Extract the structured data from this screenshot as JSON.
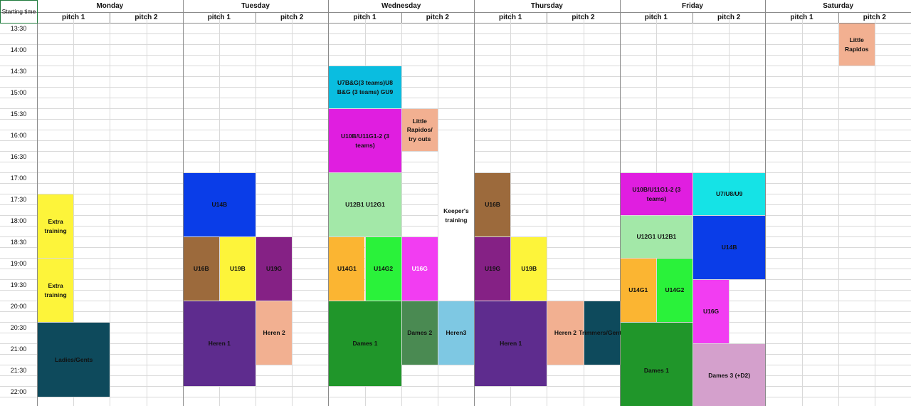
{
  "header": {
    "corner": "Starting time"
  },
  "days": [
    {
      "name": "Monday",
      "pitches": [
        "pitch 1",
        "pitch 2"
      ]
    },
    {
      "name": "Tuesday",
      "pitches": [
        "pitch 1",
        "pitch 2"
      ]
    },
    {
      "name": "Wednesday",
      "pitches": [
        "pitch 1",
        "pitch 2"
      ]
    },
    {
      "name": "Thursday",
      "pitches": [
        "pitch 1",
        "pitch 2"
      ]
    },
    {
      "name": "Friday",
      "pitches": [
        "pitch 1",
        "pitch 2"
      ]
    },
    {
      "name": "Saturday",
      "pitches": [
        "pitch 1",
        "pitch 2"
      ]
    }
  ],
  "times": [
    "13:30",
    "14:00",
    "14:30",
    "15:00",
    "15:30",
    "16:00",
    "16:30",
    "17:00",
    "17:30",
    "18:00",
    "18:30",
    "19:00",
    "19:30",
    "20:00",
    "20:30",
    "21:00",
    "21:30",
    "22:00"
  ],
  "events": [
    {
      "label": "Extra training",
      "color": "#fdf43a"
    },
    {
      "label": "Extra training",
      "color": "#fdf43a"
    },
    {
      "label": "Ladies/Gents",
      "color": "#0e4a5c"
    },
    {
      "label": "U14B",
      "color": "#0a3de8"
    },
    {
      "label": "U16B",
      "color": "#9c6a3c"
    },
    {
      "label": "U19B",
      "color": "#fdf43a"
    },
    {
      "label": "U19G",
      "color": "#852185"
    },
    {
      "label": "Heren 1",
      "color": "#5e2c8e"
    },
    {
      "label": "Heren 2",
      "color": "#f2b091"
    },
    {
      "label": "U7B&G(3 teams)U8 B&G (3 teams) GU9",
      "color": "#0abde0"
    },
    {
      "label": "U10B/U11G1-2 (3 teams)",
      "color": "#e01ee0"
    },
    {
      "label": "Little Rapidos/ try outs",
      "color": "#f2b091"
    },
    {
      "label": "Keeper's training",
      "color": "#ffffff"
    },
    {
      "label": "U12B1 U12G1",
      "color": "#a3e8a8"
    },
    {
      "label": "U14G1",
      "color": "#fbb532"
    },
    {
      "label": "U14G2",
      "color": "#2af23a"
    },
    {
      "label": "U16G",
      "color": "#f23df2"
    },
    {
      "label": "Dames 1",
      "color": "#20962a"
    },
    {
      "label": "Dames 2",
      "color": "#4a8a52"
    },
    {
      "label": "Heren3",
      "color": "#7ec8e3"
    },
    {
      "label": "U16B",
      "color": "#9c6a3c"
    },
    {
      "label": "U19G",
      "color": "#852185"
    },
    {
      "label": "U19B",
      "color": "#fdf43a"
    },
    {
      "label": "Heren 1",
      "color": "#5e2c8e"
    },
    {
      "label": "Heren 2",
      "color": "#f2b091"
    },
    {
      "label": "Trimmers/Gents",
      "color": "#0e4a5c"
    },
    {
      "label": "U10B/U11G1-2 (3 teams)",
      "color": "#e01ee0"
    },
    {
      "label": "U7/U8/U9",
      "color": "#15e3e6"
    },
    {
      "label": "U12G1 U12B1",
      "color": "#a3e8a8"
    },
    {
      "label": "U14B",
      "color": "#0a3de8"
    },
    {
      "label": "U14G1",
      "color": "#fbb532"
    },
    {
      "label": "U14G2",
      "color": "#2af23a"
    },
    {
      "label": "U16G",
      "color": "#f23df2"
    },
    {
      "label": "Dames 1",
      "color": "#20962a"
    },
    {
      "label": "Dames 3 (+D2)",
      "color": "#d4a0cc"
    },
    {
      "label": "Little Rapidos",
      "color": "#f2b091"
    }
  ]
}
